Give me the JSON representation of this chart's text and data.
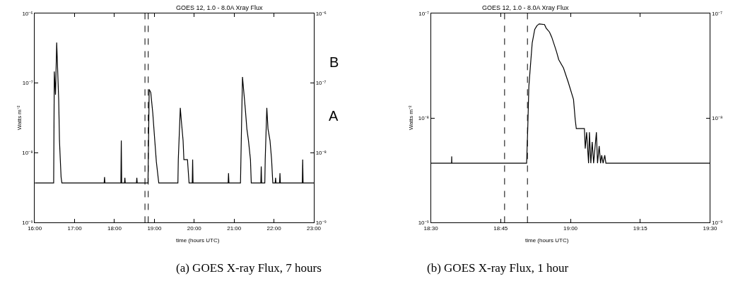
{
  "chart_data": [
    {
      "type": "line",
      "title": "GOES 12, 1.0 - 8.0A Xray Flux",
      "xlabel": "time (hours UTC)",
      "ylabel": "Watts m⁻²",
      "log": "y",
      "x": [
        16.0,
        16.474,
        16.49,
        16.52,
        16.55,
        16.6,
        16.62,
        16.64,
        16.66,
        16.68,
        17.74,
        17.75,
        17.76,
        18.16,
        18.165,
        18.17,
        18.18,
        18.25,
        18.26,
        18.27,
        18.55,
        18.56,
        18.57,
        18.84,
        18.87,
        18.91,
        18.96,
        19.01,
        19.05,
        19.11,
        19.59,
        19.6,
        19.65,
        19.68,
        19.72,
        19.74,
        19.83,
        19.87,
        19.95,
        19.96,
        19.97,
        20.85,
        20.86,
        20.87,
        21.16,
        21.19,
        21.21,
        21.28,
        21.32,
        21.36,
        21.41,
        21.43,
        21.67,
        21.68,
        21.69,
        21.77,
        21.78,
        21.82,
        21.85,
        21.9,
        21.94,
        21.97,
        22.03,
        22.04,
        22.05,
        22.14,
        22.15,
        22.16,
        22.71,
        22.72,
        22.73,
        23.0
      ],
      "series": [
        {
          "color": "#000000",
          "values": [
            3.7e-09,
            3.7e-09,
            1.46e-07,
            6.8e-08,
            3.8e-07,
            5.8e-08,
            1.48e-08,
            8e-09,
            4.5e-09,
            3.7e-09,
            3.7e-09,
            4.5e-09,
            3.7e-09,
            3.7e-09,
            8e-09,
            1.5e-08,
            3.7e-09,
            3.7e-09,
            4.4e-09,
            3.7e-09,
            3.7e-09,
            4.4e-09,
            3.7e-09,
            3.7e-09,
            8.1e-08,
            7.3e-08,
            3.7e-08,
            1.5e-08,
            7.4e-09,
            3.7e-09,
            3.7e-09,
            8e-09,
            4.4e-08,
            2.7e-08,
            1.5e-08,
            8e-09,
            8e-09,
            3.7e-09,
            3.7e-09,
            8e-09,
            3.7e-09,
            3.7e-09,
            5.1e-09,
            3.7e-09,
            3.7e-09,
            3.2e-08,
            1.22e-07,
            4.3e-08,
            2.2e-08,
            1.5e-08,
            8e-09,
            3.7e-09,
            3.7e-09,
            6.4e-09,
            3.7e-09,
            3.7e-09,
            8e-09,
            4.4e-08,
            2.2e-08,
            1.5e-08,
            8e-09,
            3.7e-09,
            3.7e-09,
            4.4e-09,
            3.7e-09,
            3.7e-09,
            5.1e-09,
            3.7e-09,
            3.7e-09,
            8e-09,
            3.7e-09,
            3.7e-09
          ]
        }
      ],
      "xlim": [
        16,
        23
      ],
      "xticks": [
        {
          "value": 16,
          "label": "16:00"
        },
        {
          "value": 17,
          "label": "17:00"
        },
        {
          "value": 18,
          "label": "18:00"
        },
        {
          "value": 19,
          "label": "19:00"
        },
        {
          "value": 20,
          "label": "20:00"
        },
        {
          "value": 21,
          "label": "21:00"
        },
        {
          "value": 22,
          "label": "22:00"
        },
        {
          "value": 23,
          "label": "23:00"
        }
      ],
      "ylim": [
        1e-09,
        1e-06
      ],
      "yticks": [
        {
          "value": 1e-09,
          "label": "10⁻⁹"
        },
        {
          "value": 1e-08,
          "label": "10⁻⁸"
        },
        {
          "value": 1e-07,
          "label": "10⁻⁷"
        },
        {
          "value": 1e-06,
          "label": "10⁻⁶"
        }
      ],
      "ref_lines": [
        {
          "axis": "x",
          "value": 18.764,
          "color": "#000000",
          "line_style": "dashed"
        },
        {
          "axis": "x",
          "value": 18.846,
          "color": "#000000",
          "line_style": "dashed"
        }
      ],
      "annotations": [
        "B",
        "A",
        "(a) GOES X-ray Flux, 7 hours"
      ]
    },
    {
      "type": "line",
      "title": "GOES 12, 1.0 - 8.0A Xray Flux",
      "xlabel": "time (hours UTC)",
      "ylabel": "Watts m⁻²",
      "log": "y",
      "x": [
        18.5,
        18.574,
        18.5745,
        18.575,
        18.843,
        18.847,
        18.851,
        18.858,
        18.863,
        18.872,
        18.88,
        18.888,
        18.907,
        18.913,
        18.925,
        18.933,
        18.942,
        18.95,
        18.958,
        18.975,
        18.992,
        19.011,
        19.017,
        19.021,
        19.05,
        19.053,
        19.058,
        19.065,
        19.068,
        19.073,
        19.078,
        19.083,
        19.093,
        19.097,
        19.103,
        19.108,
        19.112,
        19.117,
        19.123,
        19.127,
        19.5
      ],
      "series": [
        {
          "color": "#000000",
          "values": [
            3.7e-09,
            3.7e-09,
            4.3e-09,
            3.7e-09,
            3.7e-09,
            7.9e-09,
            2e-08,
            3.5e-08,
            5.2e-08,
            7e-08,
            7.6e-08,
            7.9e-08,
            7.8e-08,
            7.2e-08,
            6.6e-08,
            5.9e-08,
            5e-08,
            4.3e-08,
            3.6e-08,
            3e-08,
            2.2e-08,
            1.5e-08,
            9.7e-09,
            7.9e-09,
            7.9e-09,
            5.1e-09,
            7.3e-09,
            3.7e-09,
            7.3e-09,
            3.7e-09,
            5.9e-09,
            3.7e-09,
            7.3e-09,
            3.7e-09,
            5.4e-09,
            3.7e-09,
            4.4e-09,
            3.7e-09,
            4.4e-09,
            3.7e-09,
            3.7e-09
          ]
        }
      ],
      "xlim": [
        18.5,
        19.5
      ],
      "xticks": [
        {
          "value": 18.5,
          "label": "18:30"
        },
        {
          "value": 18.75,
          "label": "18:45"
        },
        {
          "value": 19,
          "label": "19:00"
        },
        {
          "value": 19.25,
          "label": "19:15"
        },
        {
          "value": 19.5,
          "label": "19:30"
        }
      ],
      "ylim": [
        1e-09,
        1e-07
      ],
      "yticks": [
        {
          "value": 1e-09,
          "label": "10⁻⁹"
        },
        {
          "value": 1e-08,
          "label": "10⁻⁸"
        },
        {
          "value": 1e-07,
          "label": "10⁻⁷"
        }
      ],
      "ref_lines": [
        {
          "axis": "x",
          "value": 18.764,
          "color": "#000000",
          "line_style": "dashed"
        },
        {
          "axis": "x",
          "value": 18.846,
          "color": "#000000",
          "line_style": "dashed"
        }
      ],
      "annotations": [
        "(b) GOES X-ray Flux, 1 hour"
      ]
    }
  ]
}
